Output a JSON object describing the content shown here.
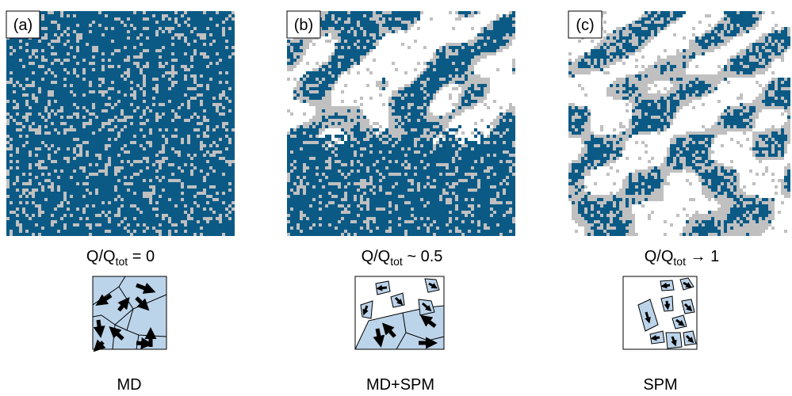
{
  "panels": [
    {
      "tag": "(a)",
      "caption": {
        "base": "Q/Q",
        "sub": "tot",
        "rest": " = 0"
      },
      "label": "MD"
    },
    {
      "tag": "(b)",
      "caption": {
        "base": "Q/Q",
        "sub": "tot",
        "rest": " ~ 0.5"
      },
      "label": "MD+SPM"
    },
    {
      "tag": "(c)",
      "caption": {
        "base": "Q/Q",
        "sub": "tot",
        "rest": " → 1"
      },
      "label": "SPM"
    }
  ]
}
